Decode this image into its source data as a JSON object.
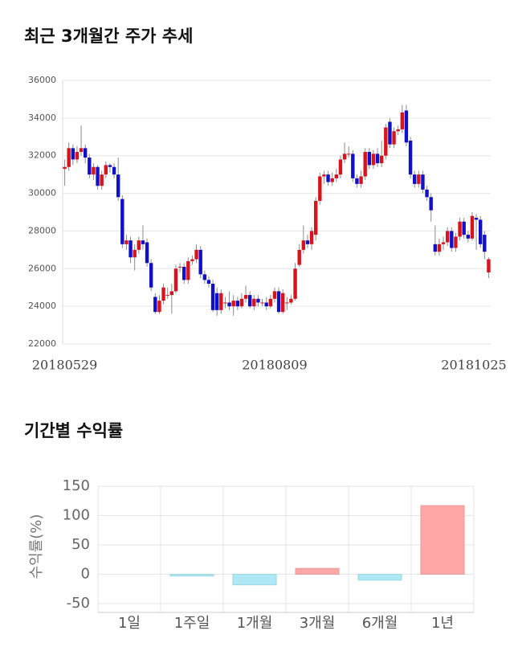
{
  "chart_data": [
    {
      "type": "candlestick",
      "title": "최근 3개월간 주가 추세",
      "categories": [
        "20180529",
        null,
        null,
        null,
        null,
        null,
        null,
        null,
        null,
        null,
        null,
        null,
        null,
        null,
        null,
        null,
        null,
        null,
        null,
        null,
        null,
        null,
        null,
        null,
        null,
        null,
        null,
        null,
        null,
        null,
        null,
        null,
        null,
        null,
        null,
        null,
        null,
        null,
        null,
        null,
        null,
        null,
        null,
        null,
        null,
        null,
        null,
        null,
        null,
        null,
        null,
        "20180809",
        null,
        null,
        null,
        null,
        null,
        null,
        null,
        null,
        null,
        null,
        null,
        null,
        null,
        null,
        null,
        null,
        null,
        null,
        null,
        null,
        null,
        null,
        null,
        null,
        null,
        null,
        null,
        null,
        null,
        null,
        null,
        null,
        null,
        null,
        null,
        null,
        null,
        null,
        null,
        null,
        null,
        null,
        null,
        null,
        null,
        null,
        null,
        null,
        null,
        null,
        null,
        "20181025"
      ],
      "open": [
        31300,
        31400,
        32400,
        31800,
        32200,
        32400,
        31900,
        31000,
        31400,
        30400,
        31000,
        31500,
        31400,
        31000,
        29700,
        27300,
        27500,
        26600,
        27000,
        27500,
        27400,
        26300,
        24500,
        23700,
        24300,
        24600,
        24600,
        24800,
        26100,
        26100,
        25400,
        26400,
        26500,
        27000,
        25700,
        25400,
        25200,
        24700,
        23800,
        24200,
        24200,
        24000,
        24300,
        24000,
        24400,
        24600,
        24000,
        24400,
        24200,
        24200,
        24000,
        24400,
        24800,
        23700,
        24200,
        24200,
        24400,
        26200,
        27000,
        27500,
        27300,
        27800,
        29600,
        30900,
        31000,
        30600,
        30800,
        31000,
        31800,
        32100,
        32100,
        30800,
        30500,
        30900,
        32200,
        31500,
        32100,
        31600,
        32000,
        33800,
        32600,
        33300,
        33400,
        34400,
        32800,
        31000,
        30500,
        31000,
        30200,
        29800,
        27300,
        26900,
        27300,
        27400,
        28000,
        27100,
        27700,
        28500,
        27800,
        27600,
        28700,
        28600,
        27800,
        25800
      ],
      "high": [
        31800,
        32700,
        32600,
        32500,
        33600,
        32600,
        32100,
        31600,
        31500,
        31200,
        31700,
        31600,
        31600,
        31900,
        29900,
        27800,
        27700,
        27300,
        27700,
        28300,
        27600,
        26500,
        24700,
        24600,
        25200,
        25000,
        25200,
        26200,
        26300,
        26300,
        26600,
        26700,
        27300,
        27200,
        25900,
        25600,
        25400,
        25000,
        24900,
        24500,
        24800,
        24600,
        24500,
        24700,
        25100,
        24800,
        24600,
        24600,
        24400,
        24500,
        24600,
        25000,
        25000,
        24900,
        24500,
        24600,
        26300,
        27300,
        28300,
        27800,
        28200,
        29800,
        31100,
        31200,
        31200,
        31100,
        31300,
        32000,
        32700,
        32500,
        32300,
        31000,
        31200,
        32400,
        32400,
        32300,
        32400,
        32800,
        33700,
        34000,
        33500,
        33600,
        34700,
        34700,
        33000,
        31200,
        31200,
        31200,
        30400,
        30000,
        28300,
        27600,
        27700,
        28200,
        28200,
        27900,
        28700,
        28700,
        28000,
        29000,
        28900,
        28800,
        28000,
        26600
      ],
      "low": [
        30400,
        31200,
        31500,
        31600,
        32000,
        31600,
        30800,
        30700,
        30200,
        30200,
        30800,
        31100,
        30800,
        29600,
        27100,
        27000,
        26300,
        25900,
        26800,
        27000,
        26100,
        24800,
        23600,
        23600,
        24100,
        24400,
        23600,
        24700,
        25800,
        25200,
        25200,
        26200,
        26300,
        25500,
        25200,
        25000,
        23700,
        23500,
        23600,
        23900,
        23800,
        23500,
        23800,
        23900,
        24200,
        23900,
        23800,
        24000,
        24000,
        23800,
        23900,
        24200,
        23600,
        23600,
        23800,
        24100,
        24300,
        26100,
        26800,
        27100,
        27000,
        27500,
        29400,
        30500,
        30400,
        30400,
        30600,
        30800,
        31600,
        31900,
        30600,
        30300,
        30300,
        30700,
        31300,
        31300,
        31400,
        31400,
        31800,
        32400,
        32400,
        33100,
        33200,
        32500,
        30800,
        30300,
        30300,
        30000,
        29600,
        28500,
        26700,
        26700,
        27000,
        27200,
        26900,
        26900,
        27500,
        27600,
        27400,
        27500,
        27000,
        27100,
        26500,
        25500
      ],
      "close": [
        31400,
        32400,
        31800,
        32200,
        32400,
        31900,
        31000,
        31400,
        30400,
        31000,
        31500,
        31400,
        31000,
        29800,
        27300,
        27500,
        26600,
        27000,
        27500,
        27300,
        26300,
        25000,
        23700,
        24300,
        25000,
        24600,
        24800,
        26000,
        26100,
        25400,
        26400,
        26500,
        27000,
        25700,
        25400,
        25200,
        23800,
        23800,
        24700,
        24200,
        24000,
        24300,
        24000,
        24400,
        24600,
        24000,
        24400,
        24200,
        24200,
        24000,
        24400,
        24800,
        23700,
        24700,
        24200,
        24400,
        26000,
        27000,
        27500,
        27300,
        28000,
        29600,
        30900,
        31000,
        30600,
        30800,
        31000,
        31800,
        32100,
        32100,
        30800,
        30500,
        30900,
        32200,
        31500,
        32100,
        31600,
        32000,
        33500,
        32600,
        33300,
        33400,
        34300,
        32700,
        31000,
        30500,
        31000,
        30200,
        29800,
        29100,
        26900,
        27300,
        27400,
        28000,
        27100,
        27700,
        28500,
        27800,
        27600,
        28800,
        28600,
        27300,
        26900,
        26500
      ],
      "up_color": "#d9121b",
      "down_color": "#1010c8",
      "wick_color": "#8c8c8c",
      "ylim": [
        22000,
        36000
      ],
      "yticks": [
        22000,
        24000,
        26000,
        28000,
        30000,
        32000,
        34000,
        36000
      ],
      "grid": true
    },
    {
      "type": "bar",
      "title": "기간별 수익률",
      "ylabel": "수익률(%)",
      "categories": [
        "1일",
        "1주일",
        "1개월",
        "3개월",
        "6개월",
        "1년"
      ],
      "values": [
        0,
        -3,
        -18,
        10,
        -10,
        117
      ],
      "positive_color": "#ffa6a6",
      "negative_color": "#aee8f5",
      "ylim": [
        -65,
        150
      ],
      "yticks": [
        -50,
        0,
        50,
        100,
        150
      ],
      "grid": true
    }
  ]
}
